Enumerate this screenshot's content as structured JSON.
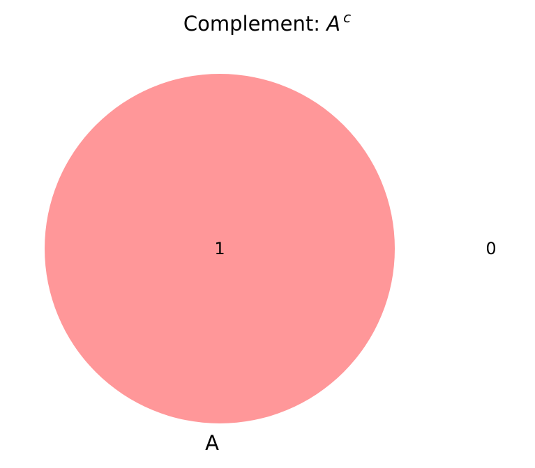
{
  "title": {
    "prefix": "Complement: ",
    "set": "A",
    "superscript": "c"
  },
  "sets": [
    {
      "name": "A",
      "color": "#ff9799"
    }
  ],
  "regions": {
    "inside_A": "1",
    "outside_A": "0"
  }
}
